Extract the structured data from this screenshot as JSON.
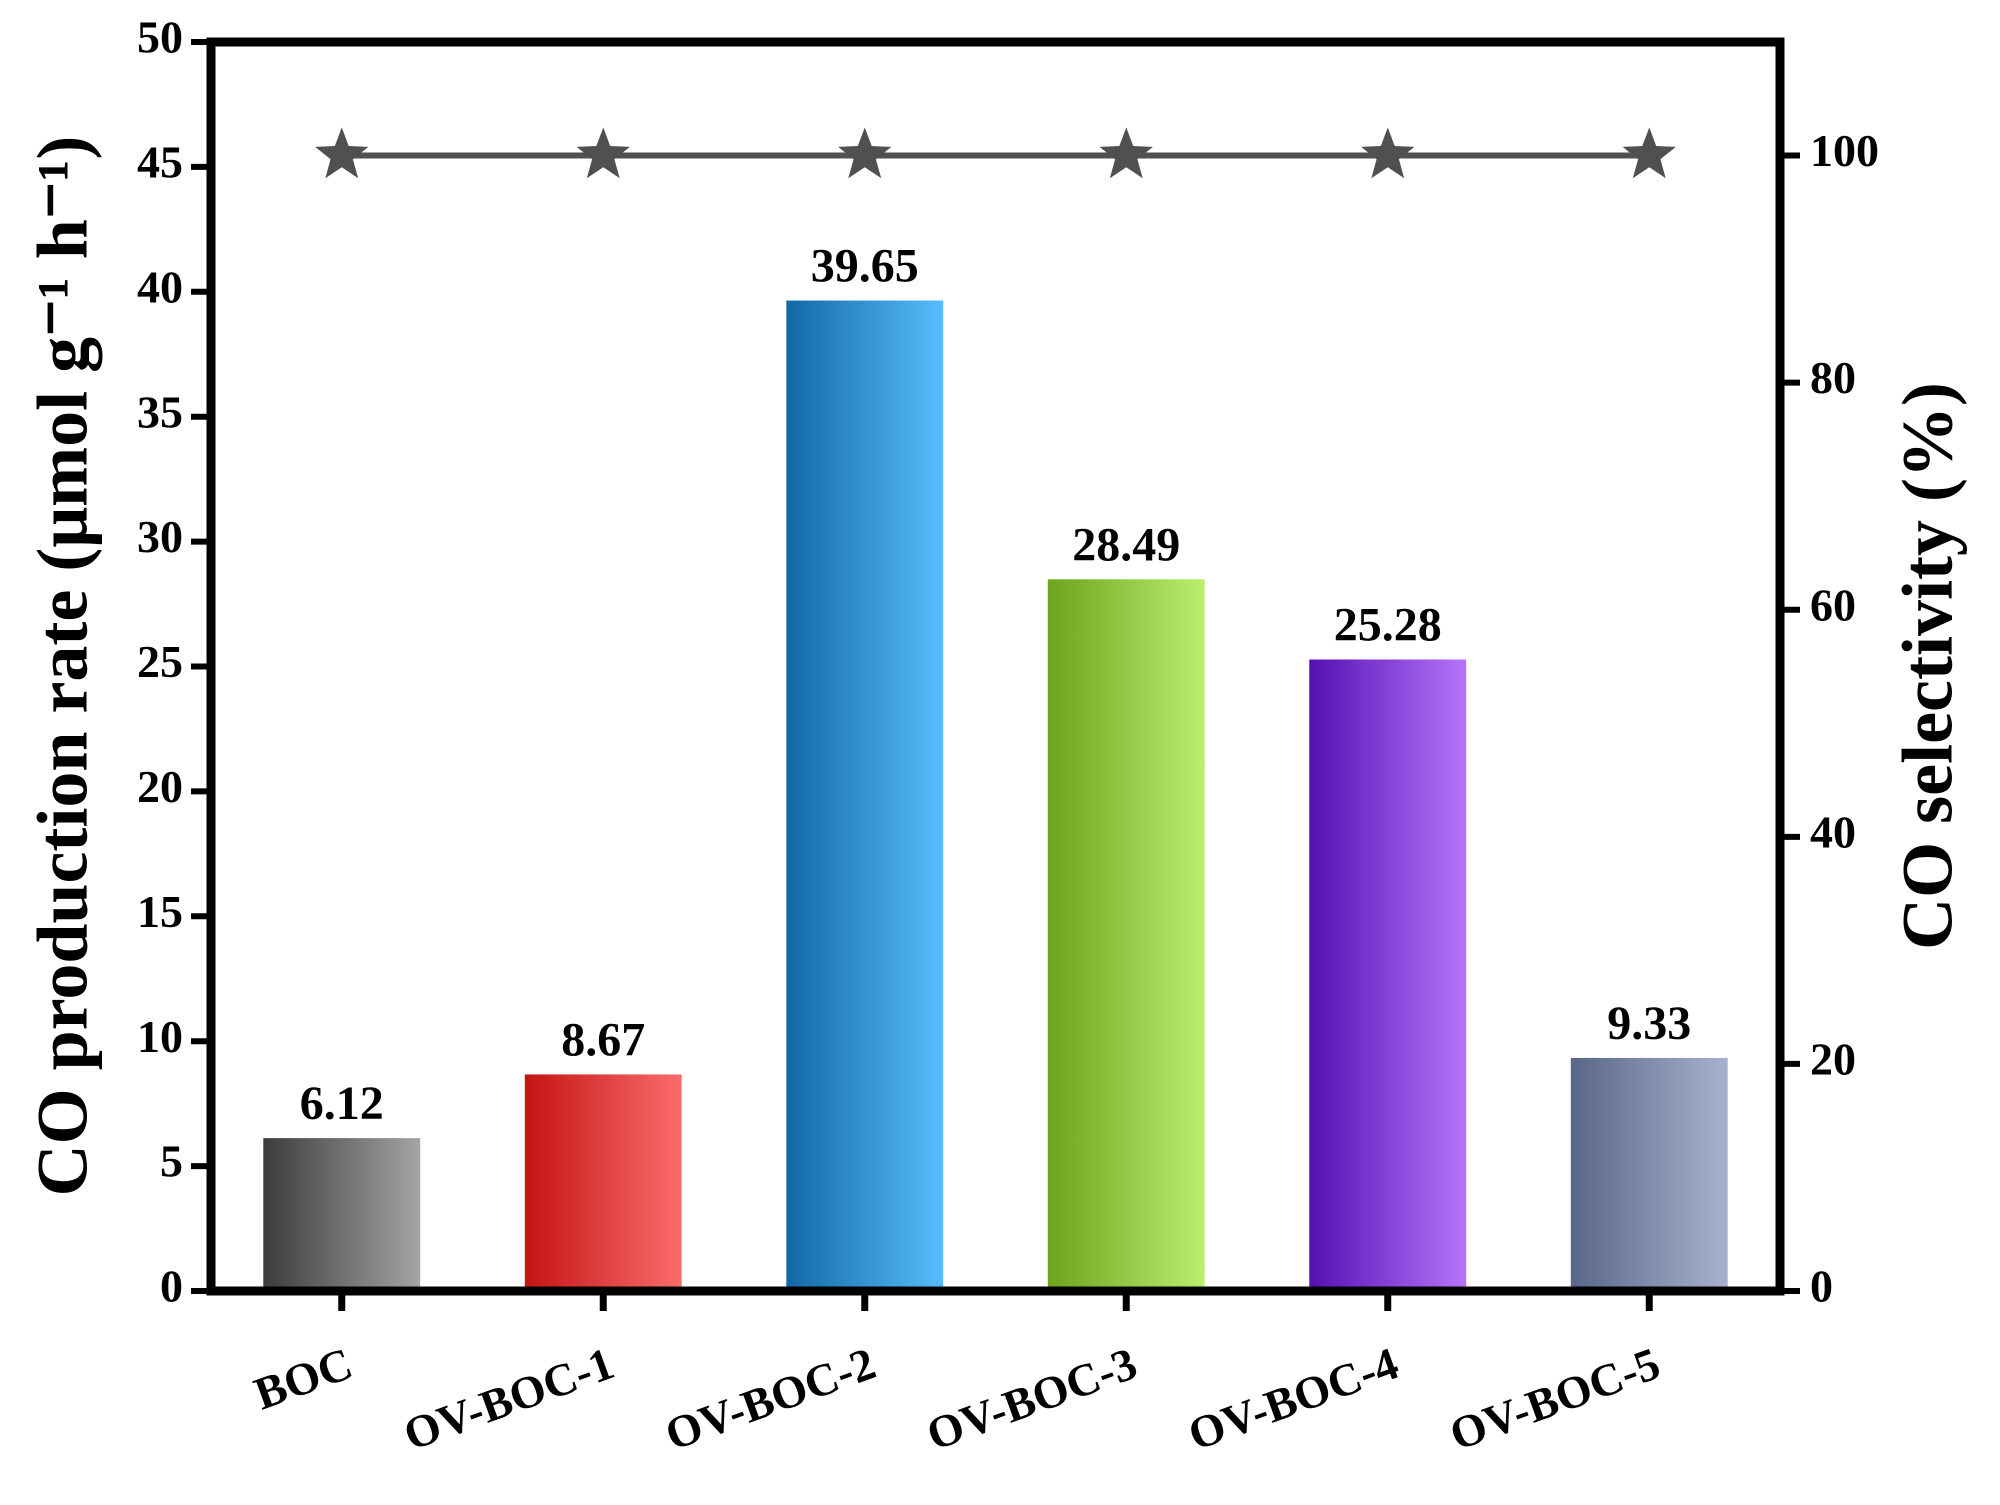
{
  "chart_data": {
    "type": "bar",
    "categories": [
      "BOC",
      "OV-BOC-1",
      "OV-BOC-2",
      "OV-BOC-3",
      "OV-BOC-4",
      "OV-BOC-5"
    ],
    "values": [
      6.12,
      8.67,
      39.65,
      28.49,
      25.28,
      9.33
    ],
    "colors": [
      [
        "#3c3c3c",
        "#a4a4a4"
      ],
      [
        "#c41414",
        "#fa6c6c"
      ],
      [
        "#1368a6",
        "#56bdfc"
      ],
      [
        "#6ea320",
        "#b9ef6c"
      ],
      [
        "#5510b3",
        "#b674fa"
      ],
      [
        "#5a6688",
        "#a8b2d0"
      ]
    ],
    "line_values": [
      100,
      100,
      100,
      100,
      100,
      100
    ],
    "line_axis": "y2",
    "line_color": "#505050",
    "line_marker": "star",
    "ylabel": "CO production rate (μmol g⁻¹ h⁻¹)",
    "y2label": "CO selectivity (%)",
    "ylim": [
      0,
      50
    ],
    "yticks": [
      0,
      5,
      10,
      15,
      20,
      25,
      30,
      35,
      40,
      45,
      50
    ],
    "y2lim": [
      0,
      110
    ],
    "y2ticks": [
      0,
      20,
      40,
      60,
      80,
      100
    ]
  }
}
